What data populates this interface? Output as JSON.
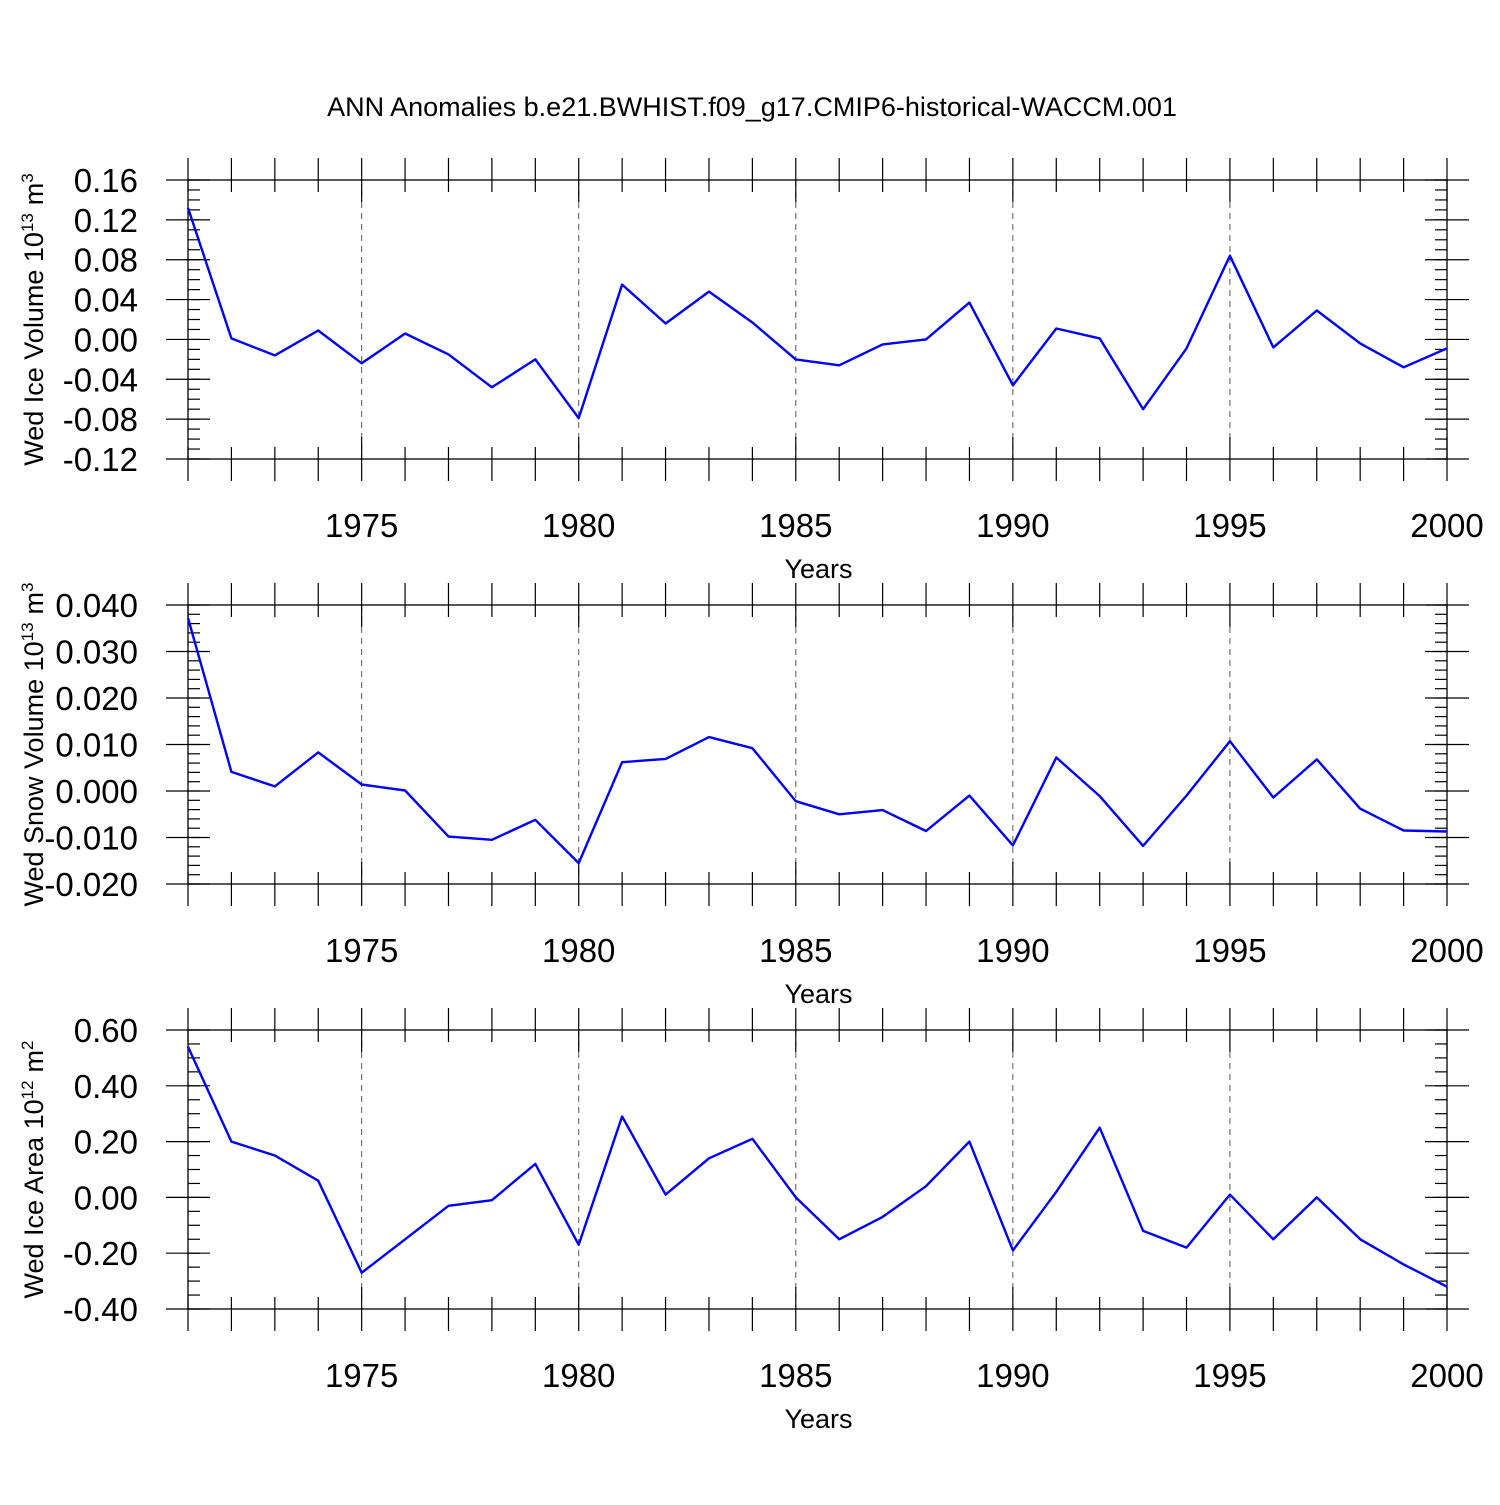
{
  "figure": {
    "title": "ANN Anomalies b.e21.BWHIST.f09_g17.CMIP6-historical-WACCM.001",
    "line_color": "#0000ff"
  },
  "chart_data": [
    {
      "type": "line",
      "ylabel": "Wed Ice Volume 10",
      "ylabel_sup": "13",
      "ylabel_unit": "m",
      "ylabel_unit_sup": "3",
      "xlabel": "Years",
      "xlim": [
        1971,
        2000
      ],
      "ylim": [
        -0.12,
        0.16
      ],
      "x_ticks": [
        1975,
        1980,
        1985,
        1990,
        1995,
        2000
      ],
      "y_ticks": [
        -0.12,
        -0.08,
        -0.04,
        0.0,
        0.04,
        0.08,
        0.12,
        0.16
      ],
      "y_tick_labels": [
        "-0.12",
        "-0.08",
        "-0.04",
        "0.00",
        "0.04",
        "0.08",
        "0.12",
        "0.16"
      ],
      "y_minor_step": 0.01,
      "grid": "vertical dashed at major x ticks",
      "x": [
        1971,
        1972,
        1973,
        1974,
        1975,
        1976,
        1977,
        1978,
        1979,
        1980,
        1981,
        1982,
        1983,
        1984,
        1985,
        1986,
        1987,
        1988,
        1989,
        1990,
        1991,
        1992,
        1993,
        1994,
        1995,
        1996,
        1997,
        1998,
        1999,
        2000
      ],
      "y": [
        0.132,
        0.001,
        -0.016,
        0.009,
        -0.024,
        0.006,
        -0.015,
        -0.048,
        -0.02,
        -0.079,
        0.055,
        0.016,
        0.048,
        0.017,
        -0.02,
        -0.026,
        -0.005,
        0.0,
        0.037,
        -0.046,
        0.011,
        0.001,
        -0.07,
        -0.009,
        0.084,
        -0.008,
        0.029,
        -0.004,
        -0.028,
        -0.009
      ]
    },
    {
      "type": "line",
      "ylabel": "Wed Snow Volume 10",
      "ylabel_sup": "13",
      "ylabel_unit": "m",
      "ylabel_unit_sup": "3",
      "xlabel": "Years",
      "xlim": [
        1971,
        2000
      ],
      "ylim": [
        -0.02,
        0.04
      ],
      "x_ticks": [
        1975,
        1980,
        1985,
        1990,
        1995,
        2000
      ],
      "y_ticks": [
        -0.02,
        -0.01,
        0.0,
        0.01,
        0.02,
        0.03,
        0.04
      ],
      "y_tick_labels": [
        "-0.020",
        "-0.010",
        "0.000",
        "0.010",
        "0.020",
        "0.030",
        "0.040"
      ],
      "y_minor_step": 0.002,
      "grid": "vertical dashed at major x ticks",
      "x": [
        1971,
        1972,
        1973,
        1974,
        1975,
        1976,
        1977,
        1978,
        1979,
        1980,
        1981,
        1982,
        1983,
        1984,
        1985,
        1986,
        1987,
        1988,
        1989,
        1990,
        1991,
        1992,
        1993,
        1994,
        1995,
        1996,
        1997,
        1998,
        1999,
        2000
      ],
      "y": [
        0.0372,
        0.0041,
        0.001,
        0.0083,
        0.0014,
        0.0001,
        -0.0098,
        -0.0105,
        -0.0062,
        -0.0155,
        0.0062,
        0.0069,
        0.0116,
        0.0092,
        -0.0022,
        -0.005,
        -0.0041,
        -0.0086,
        -0.001,
        -0.0117,
        0.0072,
        -0.0011,
        -0.0118,
        -0.001,
        0.0107,
        -0.0014,
        0.0068,
        -0.0038,
        -0.0085,
        -0.0087
      ]
    },
    {
      "type": "line",
      "ylabel": "Wed Ice Area 10",
      "ylabel_sup": "12",
      "ylabel_unit": "m",
      "ylabel_unit_sup": "2",
      "xlabel": "Years",
      "xlim": [
        1971,
        2000
      ],
      "ylim": [
        -0.4,
        0.6
      ],
      "x_ticks": [
        1975,
        1980,
        1985,
        1990,
        1995,
        2000
      ],
      "y_ticks": [
        -0.4,
        -0.2,
        0.0,
        0.2,
        0.4,
        0.6
      ],
      "y_tick_labels": [
        "-0.40",
        "-0.20",
        "0.00",
        "0.20",
        "0.40",
        "0.60"
      ],
      "y_minor_step": 0.05,
      "grid": "vertical dashed at major x ticks",
      "x": [
        1971,
        1972,
        1973,
        1974,
        1975,
        1976,
        1977,
        1978,
        1979,
        1980,
        1981,
        1982,
        1983,
        1984,
        1985,
        1986,
        1987,
        1988,
        1989,
        1990,
        1991,
        1992,
        1993,
        1994,
        1995,
        1996,
        1997,
        1998,
        1999,
        2000
      ],
      "y": [
        0.54,
        0.2,
        0.15,
        0.06,
        -0.27,
        -0.15,
        -0.03,
        -0.01,
        0.12,
        -0.17,
        0.29,
        0.01,
        0.14,
        0.21,
        0.0,
        -0.15,
        -0.07,
        0.04,
        0.2,
        -0.19,
        0.02,
        0.25,
        -0.12,
        -0.18,
        0.01,
        -0.15,
        0.0,
        -0.15,
        -0.24,
        -0.32
      ]
    }
  ]
}
